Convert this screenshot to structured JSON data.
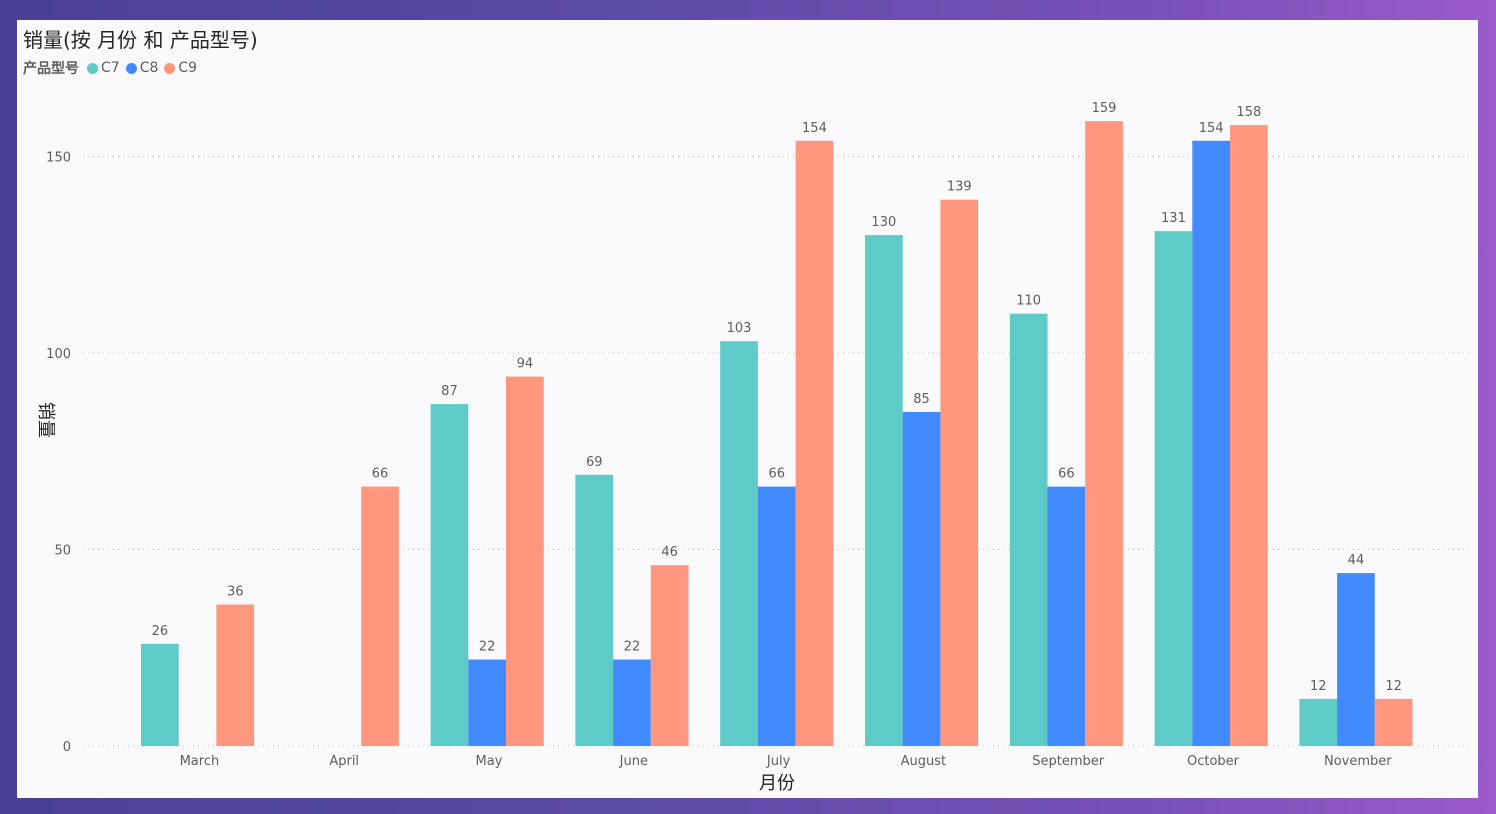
{
  "chart_data": {
    "type": "bar",
    "title": "销量(按 月份 和 产品型号)",
    "legend_title": "产品型号",
    "legend_position": "top-left",
    "xlabel": "月份",
    "ylabel": "销量",
    "categories": [
      "March",
      "April",
      "May",
      "June",
      "July",
      "August",
      "September",
      "October",
      "November"
    ],
    "series": [
      {
        "name": "C7",
        "color": "#5ecbc8",
        "values": [
          26,
          null,
          87,
          69,
          103,
          130,
          110,
          131,
          12
        ]
      },
      {
        "name": "C8",
        "color": "#428bff",
        "values": [
          null,
          null,
          22,
          22,
          66,
          85,
          66,
          154,
          44
        ]
      },
      {
        "name": "C9",
        "color": "#ff977e",
        "values": [
          36,
          66,
          94,
          46,
          154,
          139,
          159,
          158,
          12
        ]
      }
    ],
    "yticks": [
      0,
      50,
      100,
      150
    ],
    "ylim": [
      0,
      159
    ],
    "grid": true
  }
}
